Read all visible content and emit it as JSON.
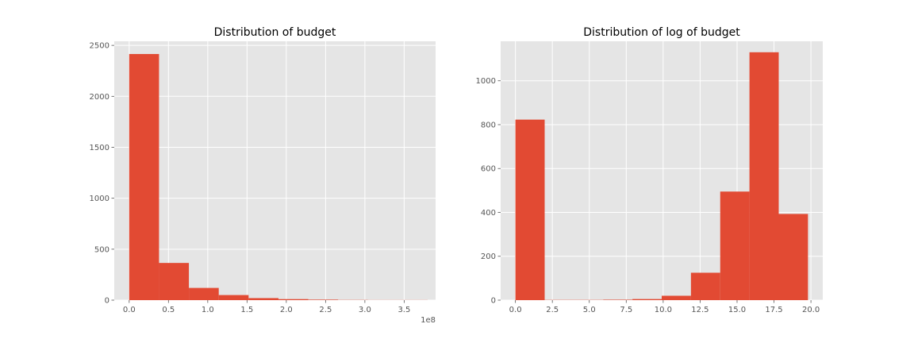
{
  "chart_data": [
    {
      "type": "bar",
      "title": "Distribution of budget",
      "xlabel": "",
      "ylabel": "",
      "x_offset_label": "1e8",
      "xlim": [
        -0.19,
        3.9
      ],
      "ylim": [
        0,
        2540
      ],
      "xticks": [
        0.0,
        0.5,
        1.0,
        1.5,
        2.0,
        2.5,
        3.0,
        3.5
      ],
      "xtick_labels": [
        "0.0",
        "0.5",
        "1.0",
        "1.5",
        "2.0",
        "2.5",
        "3.0",
        "3.5"
      ],
      "yticks": [
        0,
        500,
        1000,
        1500,
        2000,
        2500
      ],
      "ytick_labels": [
        "0",
        "500",
        "1000",
        "1500",
        "2000",
        "2500"
      ],
      "bin_edges": [
        0.0,
        0.38,
        0.76,
        1.14,
        1.52,
        1.9,
        2.28,
        2.66,
        3.04,
        3.42,
        3.8
      ],
      "values": [
        2415,
        365,
        120,
        50,
        20,
        10,
        5,
        2,
        1,
        1
      ],
      "bar_color": "#E24A33",
      "grid": true,
      "background": "#E5E5E5"
    },
    {
      "type": "bar",
      "title": "Distribution of log of budget",
      "xlabel": "",
      "ylabel": "",
      "x_offset_label": "",
      "xlim": [
        -1.0,
        20.8
      ],
      "ylim": [
        0,
        1180
      ],
      "xticks": [
        0.0,
        2.5,
        5.0,
        7.5,
        10.0,
        12.5,
        15.0,
        17.5,
        20.0
      ],
      "xtick_labels": [
        "0.0",
        "2.5",
        "5.0",
        "7.5",
        "10.0",
        "12.5",
        "15.0",
        "17.5",
        "20.0"
      ],
      "yticks": [
        0,
        200,
        400,
        600,
        800,
        1000
      ],
      "ytick_labels": [
        "0",
        "200",
        "400",
        "600",
        "800",
        "1000"
      ],
      "bin_edges": [
        0.0,
        1.98,
        3.96,
        5.94,
        7.92,
        9.9,
        11.88,
        13.86,
        15.84,
        17.82,
        19.8
      ],
      "values": [
        823,
        1,
        1,
        2,
        5,
        20,
        125,
        495,
        1130,
        393
      ],
      "bar_color": "#E24A33",
      "grid": true,
      "background": "#E5E5E5"
    }
  ]
}
